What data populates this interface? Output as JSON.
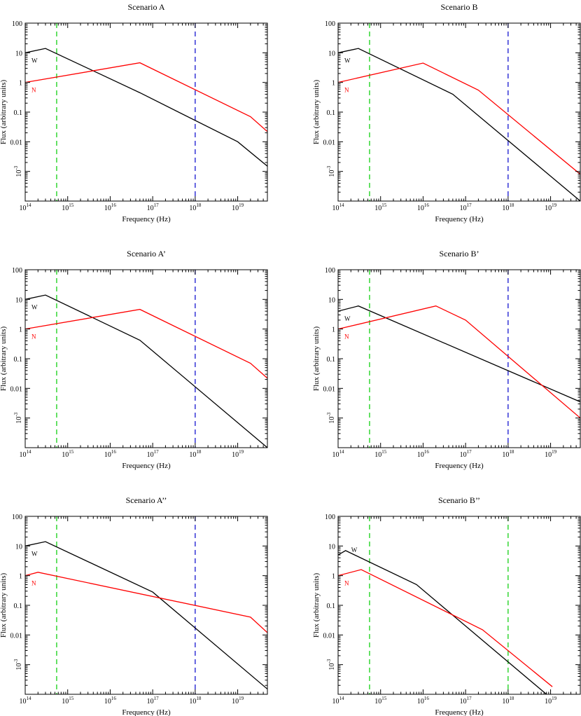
{
  "chart_data": [
    {
      "type": "line",
      "title": "Scenario A",
      "xlabel": "Frequency (Hz)",
      "ylabel": "Flux (arbitrary units)",
      "xscale": "log",
      "yscale": "log",
      "xlim": [
        100000000000000.0,
        5e+19
      ],
      "ylim": [
        0.0001,
        100
      ],
      "grid": false,
      "series": [
        {
          "name": "W",
          "color": "#000000",
          "x": [
            100000000000000.0,
            300000000000000.0,
            5e+16,
            1e+19,
            5e+19
          ],
          "y": [
            10,
            14,
            0.45,
            0.01,
            0.0015
          ]
        },
        {
          "name": "N",
          "color": "#ff0000",
          "x": [
            100000000000000.0,
            5e+16,
            2e+19,
            5e+19
          ],
          "y": [
            1,
            4.6,
            0.07,
            0.022
          ]
        }
      ],
      "vlines": [
        {
          "x": 550000000000000.0,
          "color": "#00cc00",
          "style": "dashed"
        },
        {
          "x": 1e+18,
          "color": "#0000cc",
          "style": "dashed"
        }
      ]
    },
    {
      "type": "line",
      "title": "Scenario B",
      "xlabel": "Frequency (Hz)",
      "ylabel": "Flux (arbitrary units)",
      "xscale": "log",
      "yscale": "log",
      "xlim": [
        100000000000000.0,
        5e+19
      ],
      "ylim": [
        0.0001,
        100
      ],
      "grid": false,
      "series": [
        {
          "name": "W",
          "color": "#000000",
          "x": [
            100000000000000.0,
            300000000000000.0,
            5e+16,
            5e+19
          ],
          "y": [
            10,
            14,
            0.4,
            0.0001
          ]
        },
        {
          "name": "N",
          "color": "#ff0000",
          "x": [
            100000000000000.0,
            1e+16,
            2e+17,
            5e+19
          ],
          "y": [
            1,
            4.5,
            0.55,
            0.0008
          ]
        }
      ],
      "vlines": [
        {
          "x": 550000000000000.0,
          "color": "#00cc00",
          "style": "dashed"
        },
        {
          "x": 1e+18,
          "color": "#0000cc",
          "style": "dashed"
        }
      ]
    },
    {
      "type": "line",
      "title": "Scenario A’",
      "xlabel": "Frequency (Hz)",
      "ylabel": "Flux (arbitrary units)",
      "xscale": "log",
      "yscale": "log",
      "xlim": [
        100000000000000.0,
        5e+19
      ],
      "ylim": [
        0.0001,
        100
      ],
      "grid": false,
      "series": [
        {
          "name": "W",
          "color": "#000000",
          "x": [
            100000000000000.0,
            300000000000000.0,
            5e+16,
            5e+19
          ],
          "y": [
            10,
            14,
            0.42,
            0.0001
          ]
        },
        {
          "name": "N",
          "color": "#ff0000",
          "x": [
            100000000000000.0,
            5e+16,
            2e+19,
            5e+19
          ],
          "y": [
            1,
            4.6,
            0.07,
            0.022
          ]
        }
      ],
      "vlines": [
        {
          "x": 550000000000000.0,
          "color": "#00cc00",
          "style": "dashed"
        },
        {
          "x": 1e+18,
          "color": "#0000cc",
          "style": "dashed"
        }
      ]
    },
    {
      "type": "line",
      "title": "Scenario B’",
      "xlabel": "Frequency (Hz)",
      "ylabel": "Flux (arbitrary units)",
      "xscale": "log",
      "yscale": "log",
      "xlim": [
        100000000000000.0,
        5e+19
      ],
      "ylim": [
        0.0001,
        100
      ],
      "grid": false,
      "series": [
        {
          "name": "W",
          "color": "#000000",
          "x": [
            100000000000000.0,
            300000000000000.0,
            5e+19
          ],
          "y": [
            4,
            6,
            0.0035
          ]
        },
        {
          "name": "N",
          "color": "#ff0000",
          "x": [
            100000000000000.0,
            2e+16,
            1e+17,
            5e+19
          ],
          "y": [
            1,
            6,
            2,
            0.001
          ]
        }
      ],
      "vlines": [
        {
          "x": 550000000000000.0,
          "color": "#00cc00",
          "style": "dashed"
        },
        {
          "x": 1e+18,
          "color": "#0000cc",
          "style": "dashed"
        }
      ]
    },
    {
      "type": "line",
      "title": "Scenario A’’",
      "xlabel": "Frequency (Hz)",
      "ylabel": "Flux (arbitrary units)",
      "xscale": "log",
      "yscale": "log",
      "xlim": [
        100000000000000.0,
        5e+19
      ],
      "ylim": [
        0.0001,
        100
      ],
      "grid": false,
      "series": [
        {
          "name": "W",
          "color": "#000000",
          "x": [
            100000000000000.0,
            300000000000000.0,
            1e+17,
            5e+19
          ],
          "y": [
            10,
            14,
            0.28,
            0.00015
          ]
        },
        {
          "name": "N",
          "color": "#ff0000",
          "x": [
            100000000000000.0,
            200000000000000.0,
            2e+19,
            5e+19
          ],
          "y": [
            1,
            1.3,
            0.04,
            0.012
          ]
        }
      ],
      "vlines": [
        {
          "x": 550000000000000.0,
          "color": "#00cc00",
          "style": "dashed"
        },
        {
          "x": 1e+18,
          "color": "#0000cc",
          "style": "dashed"
        }
      ]
    },
    {
      "type": "line",
      "title": "Scenario B’’",
      "xlabel": "Frequency (Hz)",
      "ylabel": "Flux (arbitrary units)",
      "xscale": "log",
      "yscale": "log",
      "xlim": [
        100000000000000.0,
        5e+19
      ],
      "ylim": [
        0.0001,
        100
      ],
      "grid": false,
      "series": [
        {
          "name": "W",
          "color": "#000000",
          "x": [
            100000000000000.0,
            150000000000000.0,
            7000000000000000.0,
            8e+18
          ],
          "y": [
            5,
            7,
            0.5,
            0.0001
          ]
        },
        {
          "name": "N",
          "color": "#ff0000",
          "x": [
            100000000000000.0,
            350000000000000.0,
            2.5e+17,
            1.1e+19
          ],
          "y": [
            1,
            1.6,
            0.015,
            0.00018
          ]
        }
      ],
      "vlines": [
        {
          "x": 550000000000000.0,
          "color": "#00cc00",
          "style": "dashed"
        },
        {
          "x": 1e+18,
          "color": "#00cc00",
          "style": "dashed"
        }
      ]
    }
  ]
}
